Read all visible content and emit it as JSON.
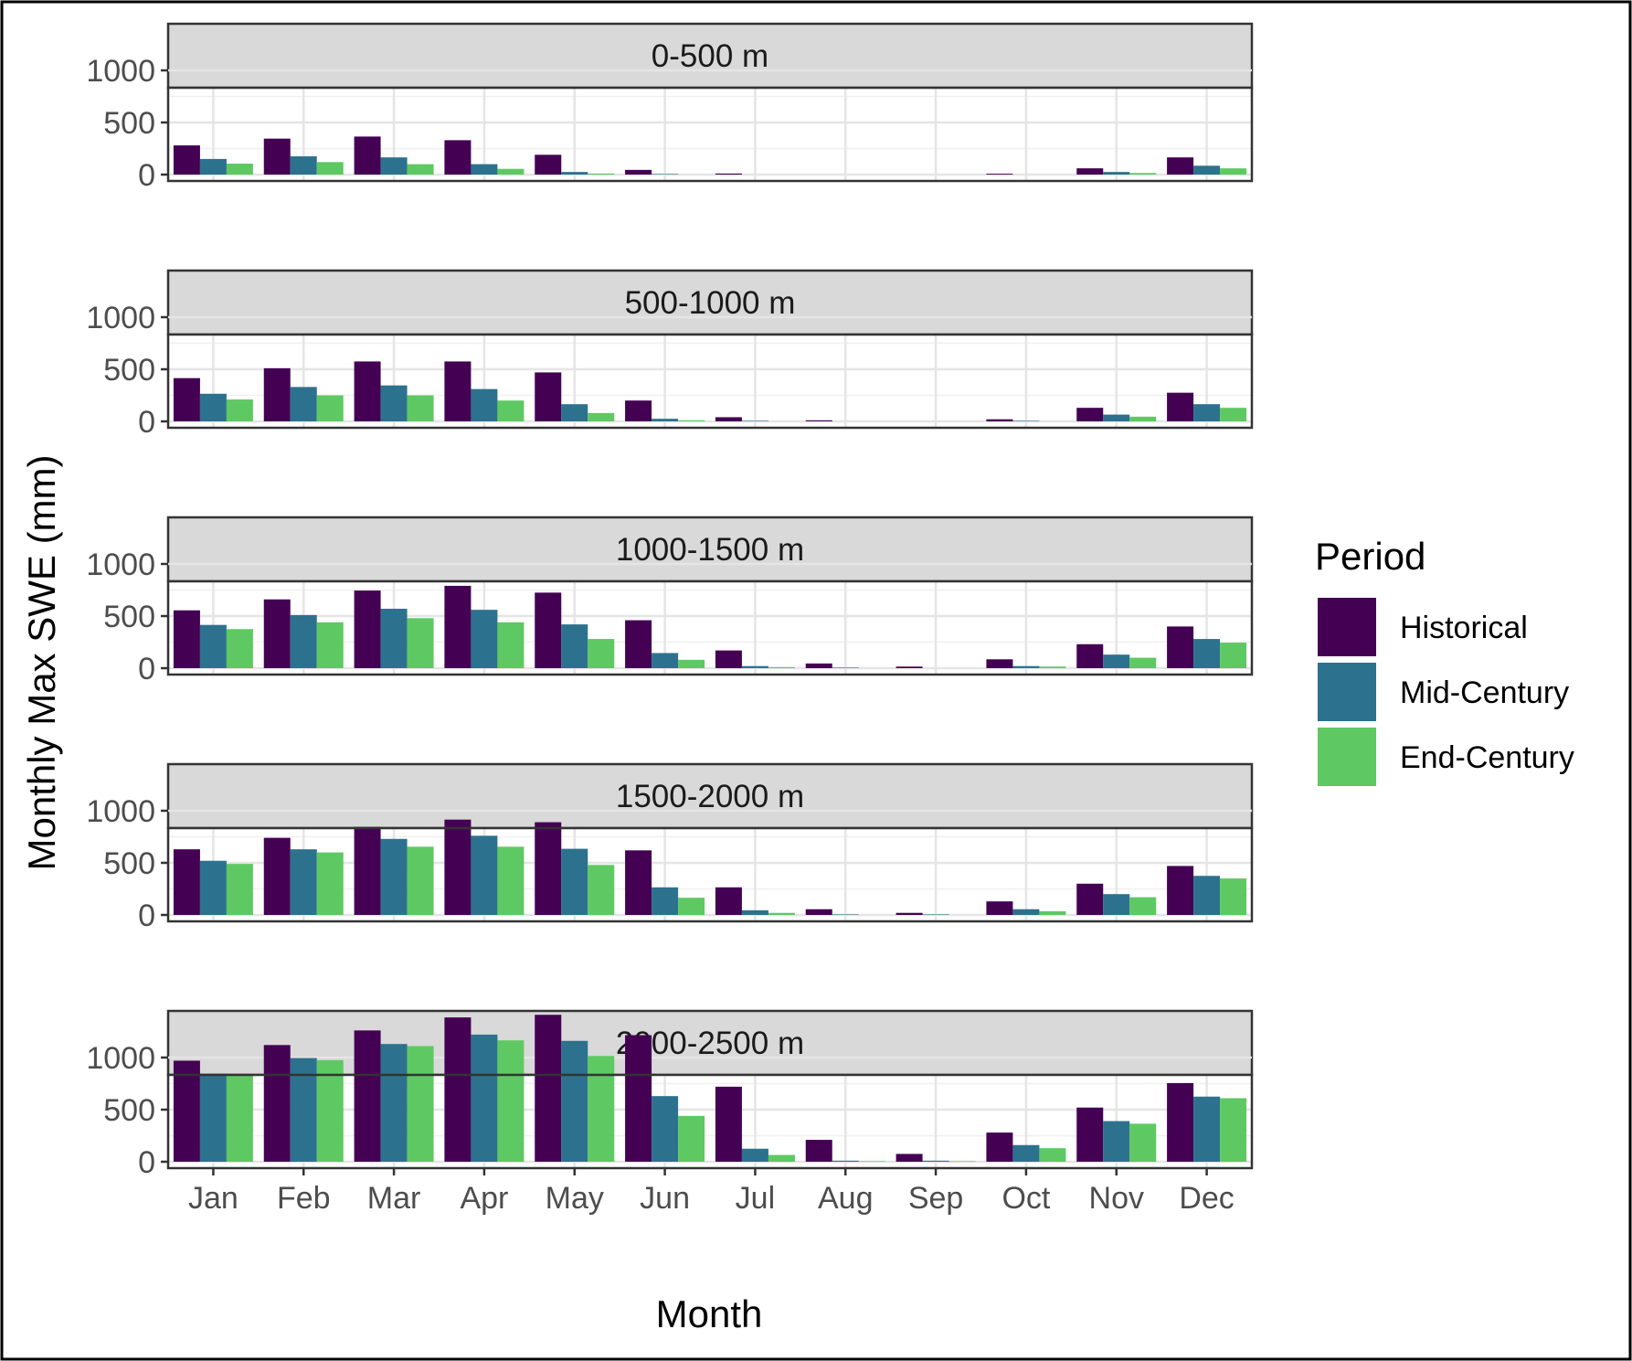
{
  "chart_data": {
    "type": "bar",
    "title": "",
    "xlabel": "Month",
    "ylabel": "Monthly Max SWE (mm)",
    "ylim": [
      0,
      1450
    ],
    "yticks": [
      0,
      500,
      1000
    ],
    "tick_labels_y": [
      "0",
      "500",
      "1000"
    ],
    "grid": true,
    "legend": {
      "title": "Period",
      "position": "right"
    },
    "categories": [
      "Jan",
      "Feb",
      "Mar",
      "Apr",
      "May",
      "Jun",
      "Jul",
      "Aug",
      "Sep",
      "Oct",
      "Nov",
      "Dec"
    ],
    "series_meta": [
      {
        "name": "Historical",
        "color": "#440154"
      },
      {
        "name": "Mid-Century",
        "color": "#2c728e"
      },
      {
        "name": "End-Century",
        "color": "#5ec962"
      }
    ],
    "facets": [
      {
        "label": "0-500 m",
        "series": [
          {
            "name": "Historical",
            "values": [
              280,
              345,
              365,
              330,
              190,
              45,
              10,
              0,
              0,
              8,
              60,
              165
            ]
          },
          {
            "name": "Mid-Century",
            "values": [
              150,
              175,
              165,
              100,
              25,
              5,
              0,
              0,
              0,
              0,
              25,
              85
            ]
          },
          {
            "name": "End-Century",
            "values": [
              105,
              120,
              100,
              55,
              10,
              0,
              0,
              0,
              0,
              0,
              15,
              60
            ]
          }
        ]
      },
      {
        "label": "500-1000 m",
        "series": [
          {
            "name": "Historical",
            "values": [
              415,
              510,
              575,
              575,
              470,
              200,
              40,
              10,
              0,
              20,
              130,
              275
            ]
          },
          {
            "name": "Mid-Century",
            "values": [
              265,
              330,
              345,
              310,
              165,
              25,
              5,
              0,
              0,
              5,
              65,
              165
            ]
          },
          {
            "name": "End-Century",
            "values": [
              210,
              250,
              250,
              200,
              80,
              10,
              0,
              0,
              0,
              0,
              45,
              130
            ]
          }
        ]
      },
      {
        "label": "1000-1500 m",
        "series": [
          {
            "name": "Historical",
            "values": [
              555,
              660,
              745,
              790,
              725,
              460,
              170,
              45,
              15,
              85,
              230,
              400
            ]
          },
          {
            "name": "Mid-Century",
            "values": [
              415,
              510,
              570,
              560,
              420,
              145,
              20,
              5,
              0,
              20,
              130,
              280
            ]
          },
          {
            "name": "End-Century",
            "values": [
              375,
              440,
              480,
              440,
              280,
              80,
              10,
              0,
              0,
              15,
              100,
              245
            ]
          }
        ]
      },
      {
        "label": "1500-2000 m",
        "series": [
          {
            "name": "Historical",
            "values": [
              630,
              740,
              845,
              915,
              890,
              620,
              265,
              55,
              20,
              130,
              300,
              470
            ]
          },
          {
            "name": "Mid-Century",
            "values": [
              520,
              630,
              730,
              760,
              635,
              265,
              45,
              5,
              5,
              55,
              200,
              375
            ]
          },
          {
            "name": "End-Century",
            "values": [
              490,
              600,
              655,
              655,
              480,
              165,
              20,
              0,
              0,
              35,
              170,
              350
            ]
          }
        ]
      },
      {
        "label": "2000-2500 m",
        "series": [
          {
            "name": "Historical",
            "values": [
              970,
              1120,
              1260,
              1385,
              1410,
              1215,
              720,
              210,
              75,
              280,
              520,
              755
            ]
          },
          {
            "name": "Mid-Century",
            "values": [
              845,
              995,
              1130,
              1220,
              1160,
              630,
              125,
              10,
              10,
              160,
              390,
              625
            ]
          },
          {
            "name": "End-Century",
            "values": [
              825,
              975,
              1110,
              1165,
              1015,
              440,
              65,
              5,
              5,
              130,
              365,
              610
            ]
          }
        ]
      }
    ]
  }
}
